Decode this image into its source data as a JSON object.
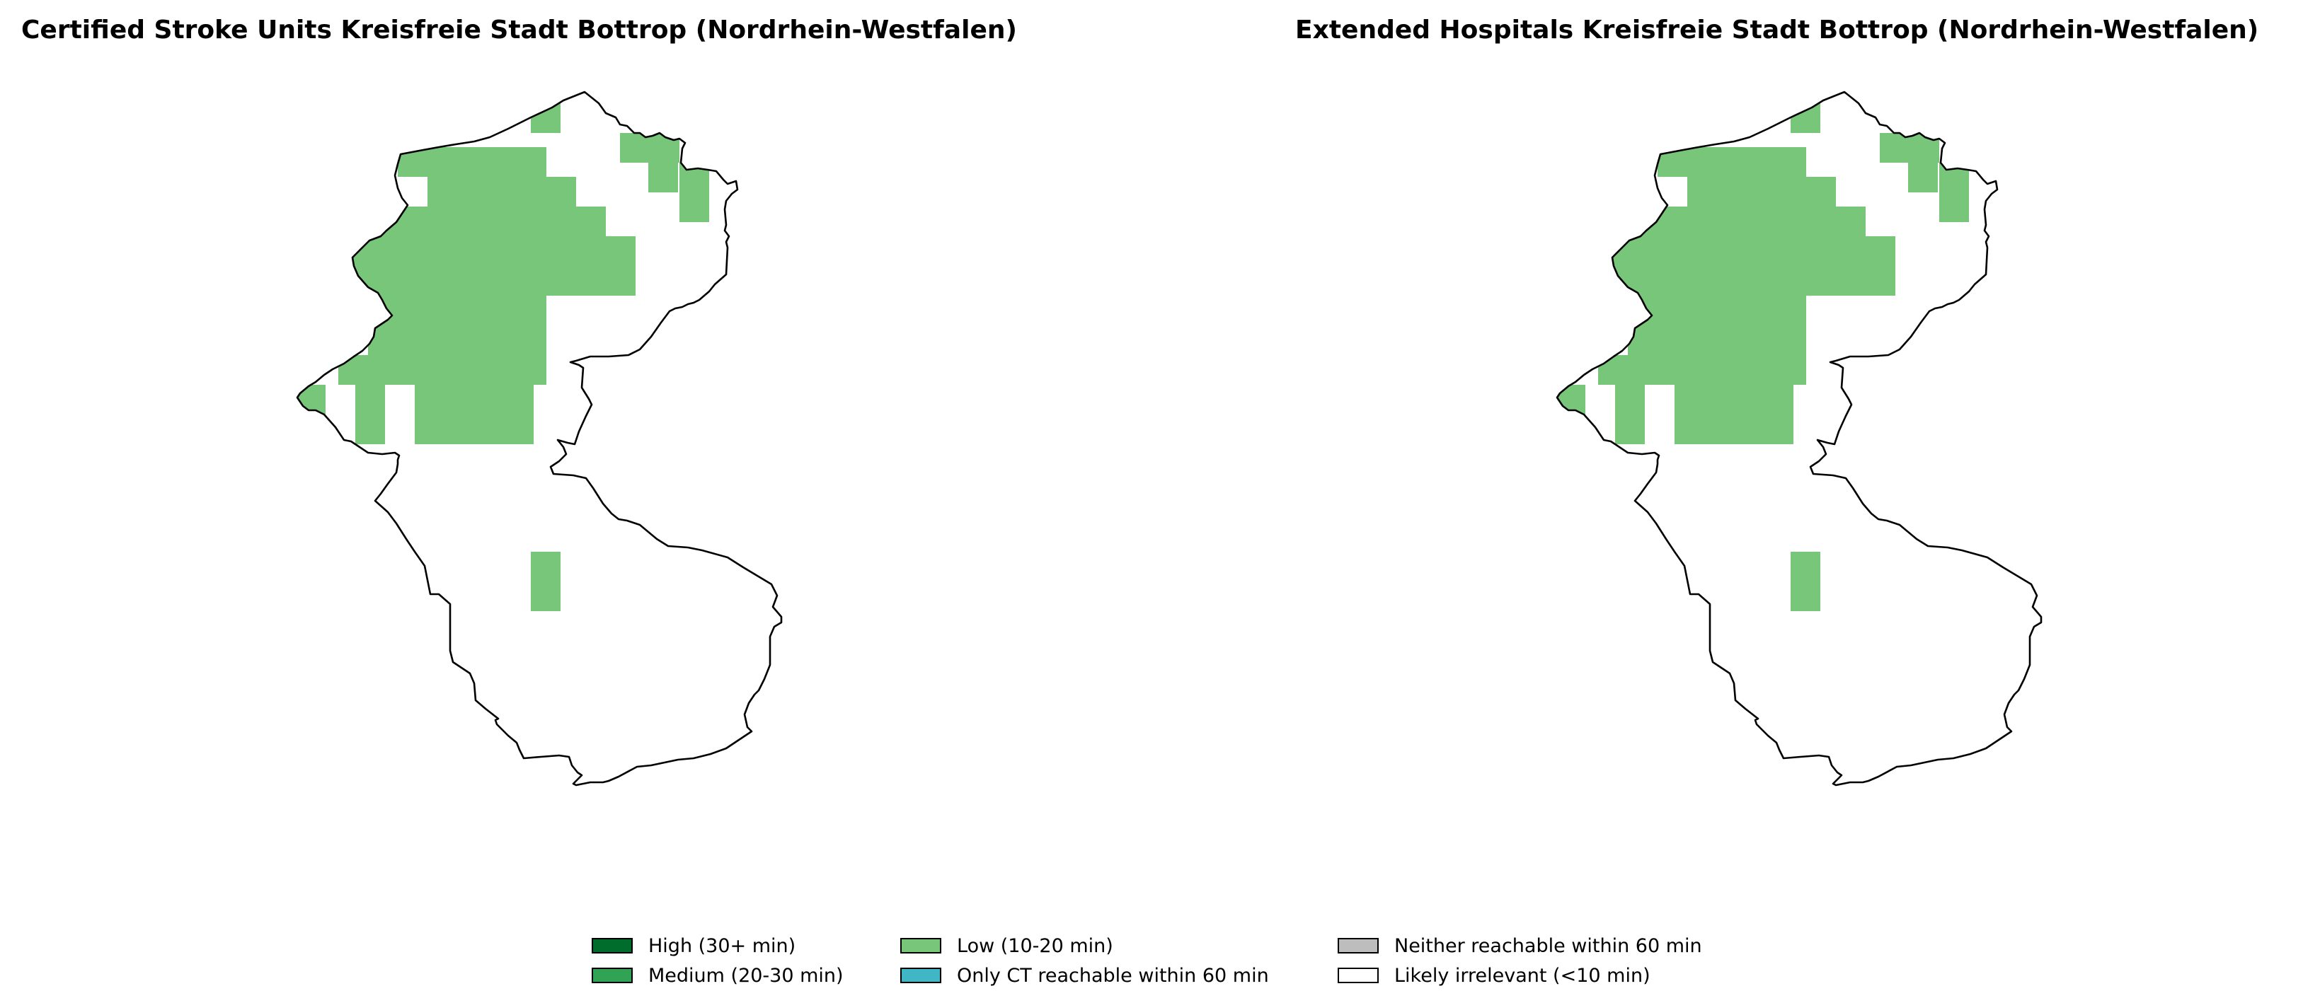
{
  "panels": [
    {
      "title": "Certified Stroke Units Kreisfreie Stadt Bottrop (Nordrhein-Westfalen)",
      "cell_category": "Low (10-20 min)"
    },
    {
      "title": "Extended Hospitals Kreisfreie Stadt Bottrop (Nordrhein-Westfalen)",
      "cell_category": "Low (10-20 min)"
    }
  ],
  "legend": {
    "items": [
      {
        "label": "High (30+ min)",
        "color": "#006d2c"
      },
      {
        "label": "Medium (20-30 min)",
        "color": "#31a354"
      },
      {
        "label": "Low (10-20 min)",
        "color": "#78c679"
      },
      {
        "label": "Only CT reachable within 60 min",
        "color": "#41b6c4"
      },
      {
        "label": "Neither reachable within 60 min",
        "color": "#bdbdbd"
      },
      {
        "label": "Likely irrelevant (<10 min)",
        "color": "#ffffff"
      }
    ]
  },
  "colors": {
    "boundary": "#000000",
    "low": "#78c679"
  }
}
